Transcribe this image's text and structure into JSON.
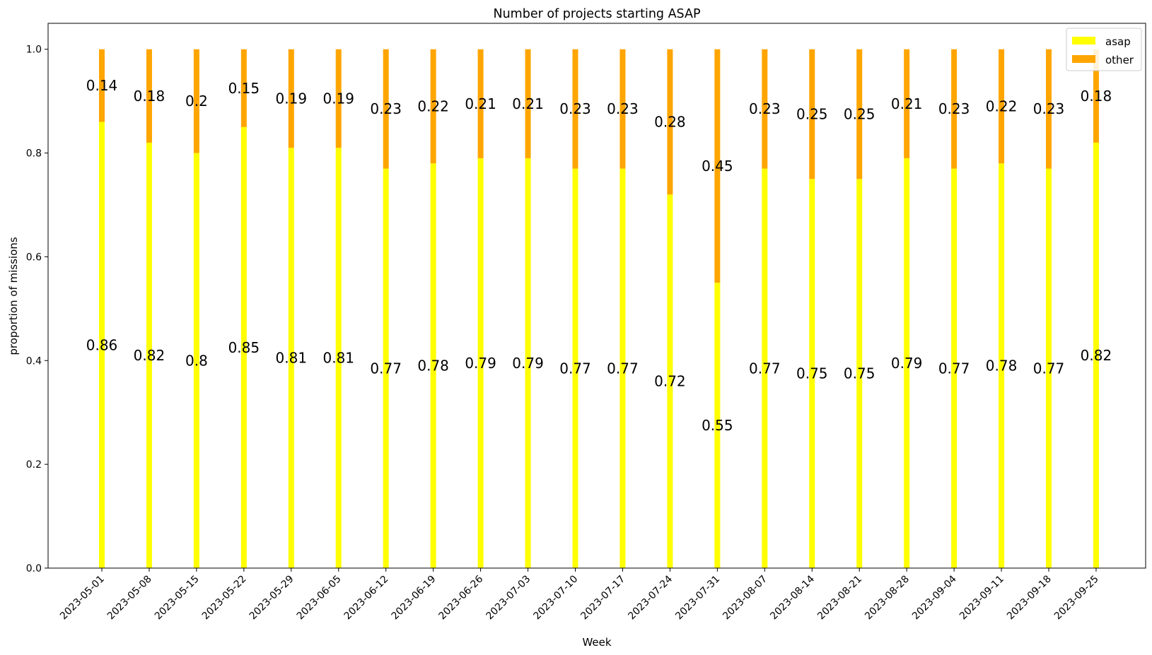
{
  "chart_data": {
    "type": "bar",
    "stacked": true,
    "title": "Number of projects starting ASAP",
    "xlabel": "Week",
    "ylabel": "proportion of missions",
    "ylim": [
      0,
      1.05
    ],
    "yticks": [
      "0.0",
      "0.2",
      "0.4",
      "0.6",
      "0.8",
      "1.0"
    ],
    "grid": false,
    "legend_position": "top-right",
    "categories": [
      "2023-05-01",
      "2023-05-08",
      "2023-05-15",
      "2023-05-22",
      "2023-05-29",
      "2023-06-05",
      "2023-06-12",
      "2023-06-19",
      "2023-06-26",
      "2023-07-03",
      "2023-07-10",
      "2023-07-17",
      "2023-07-24",
      "2023-07-31",
      "2023-08-07",
      "2023-08-14",
      "2023-08-21",
      "2023-08-28",
      "2023-09-04",
      "2023-09-11",
      "2023-09-18",
      "2023-09-25"
    ],
    "series": [
      {
        "name": "asap",
        "color": "#ffff00",
        "values": [
          0.86,
          0.82,
          0.8,
          0.85,
          0.81,
          0.81,
          0.77,
          0.78,
          0.79,
          0.79,
          0.77,
          0.77,
          0.72,
          0.55,
          0.77,
          0.75,
          0.75,
          0.79,
          0.77,
          0.78,
          0.77,
          0.82
        ],
        "labels": [
          "0.86",
          "0.82",
          "0.8",
          "0.85",
          "0.81",
          "0.81",
          "0.77",
          "0.78",
          "0.79",
          "0.79",
          "0.77",
          "0.77",
          "0.72",
          "0.55",
          "0.77",
          "0.75",
          "0.75",
          "0.79",
          "0.77",
          "0.78",
          "0.77",
          "0.82"
        ]
      },
      {
        "name": "other",
        "color": "#ffa500",
        "values": [
          0.14,
          0.18,
          0.2,
          0.15,
          0.19,
          0.19,
          0.23,
          0.22,
          0.21,
          0.21,
          0.23,
          0.23,
          0.28,
          0.45,
          0.23,
          0.25,
          0.25,
          0.21,
          0.23,
          0.22,
          0.23,
          0.18
        ],
        "labels": [
          "0.14",
          "0.18",
          "0.2",
          "0.15",
          "0.19",
          "0.19",
          "0.23",
          "0.22",
          "0.21",
          "0.21",
          "0.23",
          "0.23",
          "0.28",
          "0.45",
          "0.23",
          "0.25",
          "0.25",
          "0.21",
          "0.23",
          "0.22",
          "0.23",
          "0.18"
        ]
      }
    ]
  }
}
